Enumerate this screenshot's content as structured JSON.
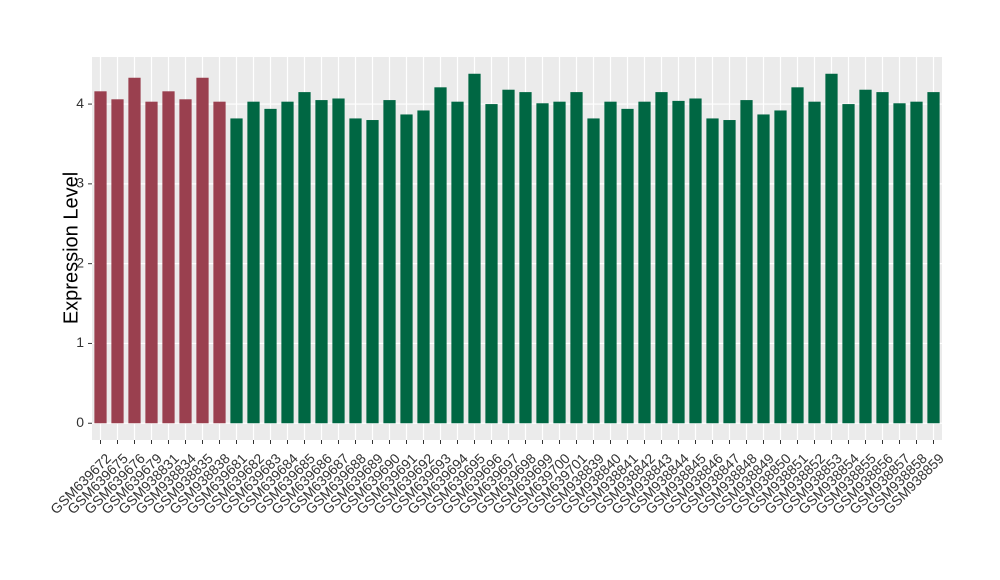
{
  "chart_data": {
    "type": "bar",
    "y_label": "Expression Level",
    "categories": [
      "GSM639672",
      "GSM639675",
      "GSM639676",
      "GSM639679",
      "GSM938831",
      "GSM938834",
      "GSM938835",
      "GSM938838",
      "GSM639681",
      "GSM639682",
      "GSM639683",
      "GSM639684",
      "GSM639685",
      "GSM639686",
      "GSM639687",
      "GSM639688",
      "GSM639689",
      "GSM639690",
      "GSM639691",
      "GSM639692",
      "GSM639693",
      "GSM639694",
      "GSM639695",
      "GSM639696",
      "GSM639697",
      "GSM639698",
      "GSM639699",
      "GSM639700",
      "GSM639701",
      "GSM938839",
      "GSM938840",
      "GSM938841",
      "GSM938842",
      "GSM938843",
      "GSM938844",
      "GSM938845",
      "GSM938846",
      "GSM938847",
      "GSM938848",
      "GSM938849",
      "GSM938850",
      "GSM938851",
      "GSM938852",
      "GSM938853",
      "GSM938854",
      "GSM938855",
      "GSM938856",
      "GSM938857",
      "GSM938858",
      "GSM938859"
    ],
    "values": [
      4.16,
      4.06,
      4.33,
      4.03,
      4.16,
      4.06,
      4.33,
      4.03,
      3.82,
      4.03,
      3.94,
      4.03,
      4.15,
      4.05,
      4.07,
      3.82,
      3.8,
      4.05,
      3.87,
      3.92,
      4.21,
      4.03,
      4.38,
      4.0,
      4.18,
      4.15,
      4.01,
      4.03,
      4.15,
      3.82,
      4.03,
      3.94,
      4.03,
      4.15,
      4.04,
      4.07,
      3.82,
      3.8,
      4.05,
      3.87,
      3.92,
      4.21,
      4.03,
      4.38,
      4.0,
      4.18,
      4.15,
      4.01,
      4.03,
      4.15
    ],
    "colors": [
      "#9a404f",
      "#9a404f",
      "#9a404f",
      "#9a404f",
      "#9a404f",
      "#9a404f",
      "#9a404f",
      "#9a404f",
      "#006743",
      "#006743",
      "#006743",
      "#006743",
      "#006743",
      "#006743",
      "#006743",
      "#006743",
      "#006743",
      "#006743",
      "#006743",
      "#006743",
      "#006743",
      "#006743",
      "#006743",
      "#006743",
      "#006743",
      "#006743",
      "#006743",
      "#006743",
      "#006743",
      "#006743",
      "#006743",
      "#006743",
      "#006743",
      "#006743",
      "#006743",
      "#006743",
      "#006743",
      "#006743",
      "#006743",
      "#006743",
      "#006743",
      "#006743",
      "#006743",
      "#006743",
      "#006743",
      "#006743",
      "#006743",
      "#006743",
      "#006743",
      "#006743"
    ],
    "ylim": [
      -0.21,
      4.59
    ],
    "yticks": [
      0,
      1,
      2,
      3,
      4
    ],
    "grid": true
  }
}
